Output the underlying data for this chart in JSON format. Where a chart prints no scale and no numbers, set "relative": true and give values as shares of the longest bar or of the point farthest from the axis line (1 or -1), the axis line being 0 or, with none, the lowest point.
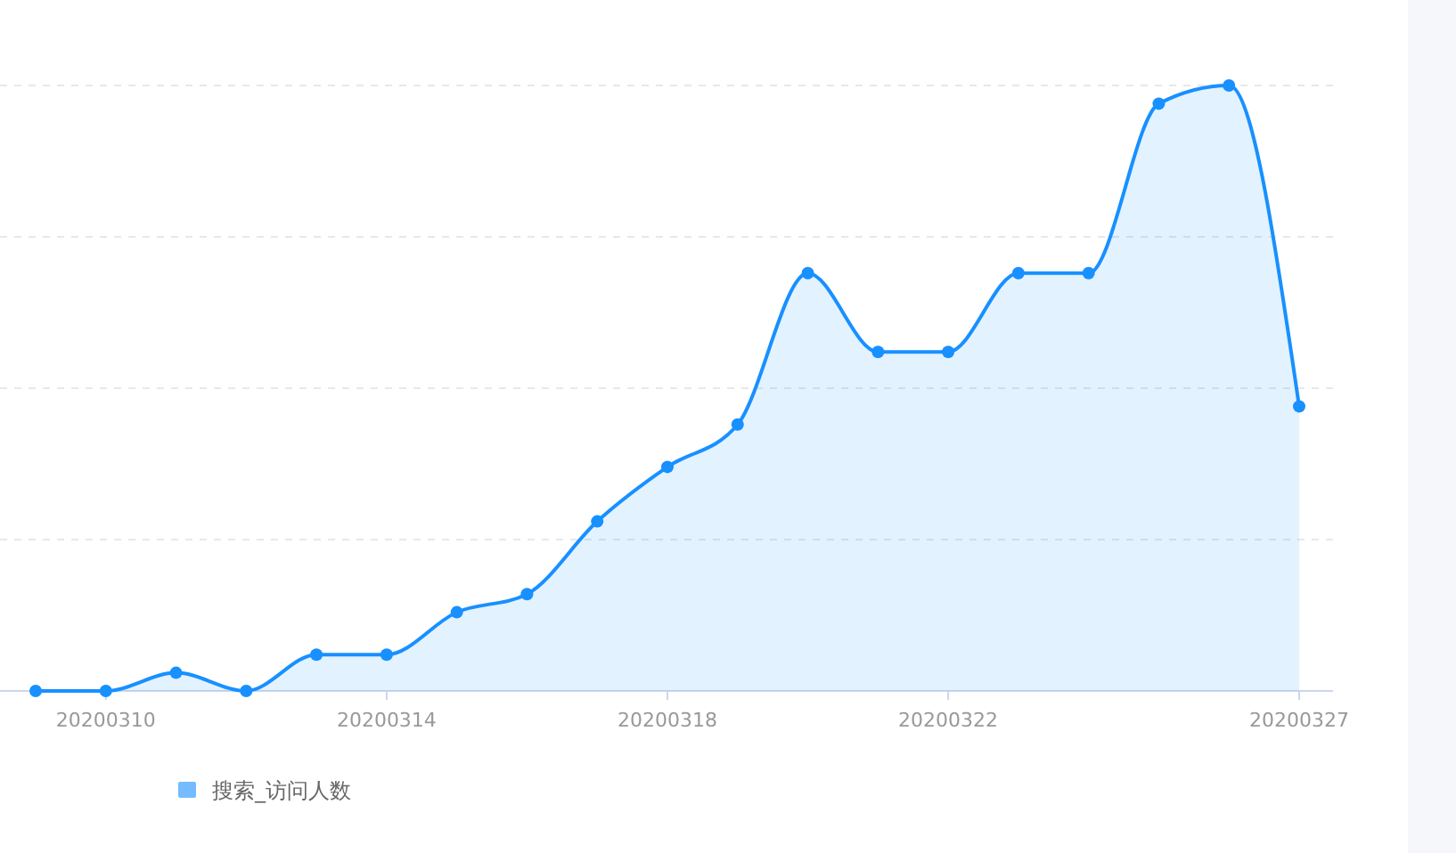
{
  "chart_data": {
    "type": "area",
    "relative": true,
    "categories": [
      null,
      "20200310",
      null,
      null,
      null,
      "20200314",
      null,
      null,
      null,
      "20200318",
      null,
      null,
      null,
      "20200322",
      null,
      null,
      null,
      null,
      "20200327"
    ],
    "series": [
      {
        "name": "搜索_访问人数",
        "color": "#1890ff",
        "values": [
          0,
          0,
          0.03,
          0,
          0.06,
          0.06,
          0.13,
          0.16,
          0.28,
          0.37,
          0.44,
          0.69,
          0.56,
          0.56,
          0.69,
          0.69,
          0.97,
          1,
          0.47
        ]
      }
    ],
    "grid": true,
    "legend": "bottom left",
    "marker": "circle"
  }
}
